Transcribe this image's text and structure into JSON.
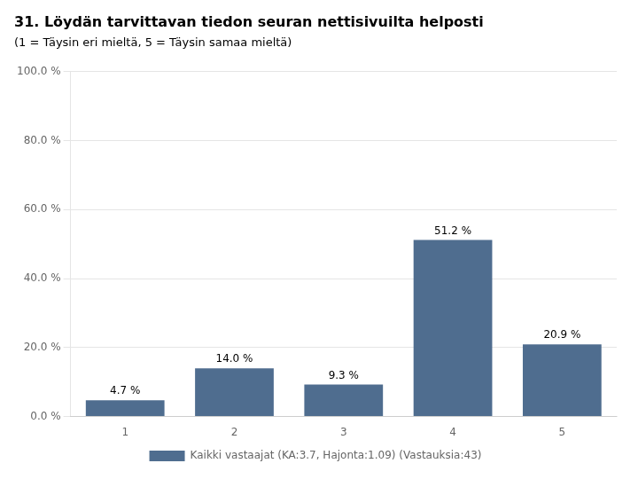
{
  "chart_data": {
    "type": "bar",
    "title": "31. Löydän tarvittavan tiedon seuran nettisivuilta helposti",
    "subtitle": "(1 = Täysin eri mieltä, 5 = Täysin samaa mieltä)",
    "categories": [
      "1",
      "2",
      "3",
      "4",
      "5"
    ],
    "series": [
      {
        "name": "Kaikki vastaajat (KA:3.7, Hajonta:1.09) (Vastauksia:43)",
        "color": "#4F6D8F",
        "values": [
          4.7,
          14.0,
          9.3,
          51.2,
          20.9
        ],
        "value_labels": [
          "4.7 %",
          "14.0 %",
          "9.3 %",
          "51.2 %",
          "20.9 %"
        ]
      }
    ],
    "ylim": [
      0,
      100
    ],
    "yticks": [
      {
        "value": 0,
        "label": "0.0 %"
      },
      {
        "value": 20,
        "label": "20.0 %"
      },
      {
        "value": 40,
        "label": "40.0 %"
      },
      {
        "value": 60,
        "label": "60.0 %"
      },
      {
        "value": 80,
        "label": "80.0 %"
      },
      {
        "value": 100,
        "label": "100.0 %"
      }
    ],
    "grid": true,
    "legend": "bottom",
    "data_labels": true
  }
}
